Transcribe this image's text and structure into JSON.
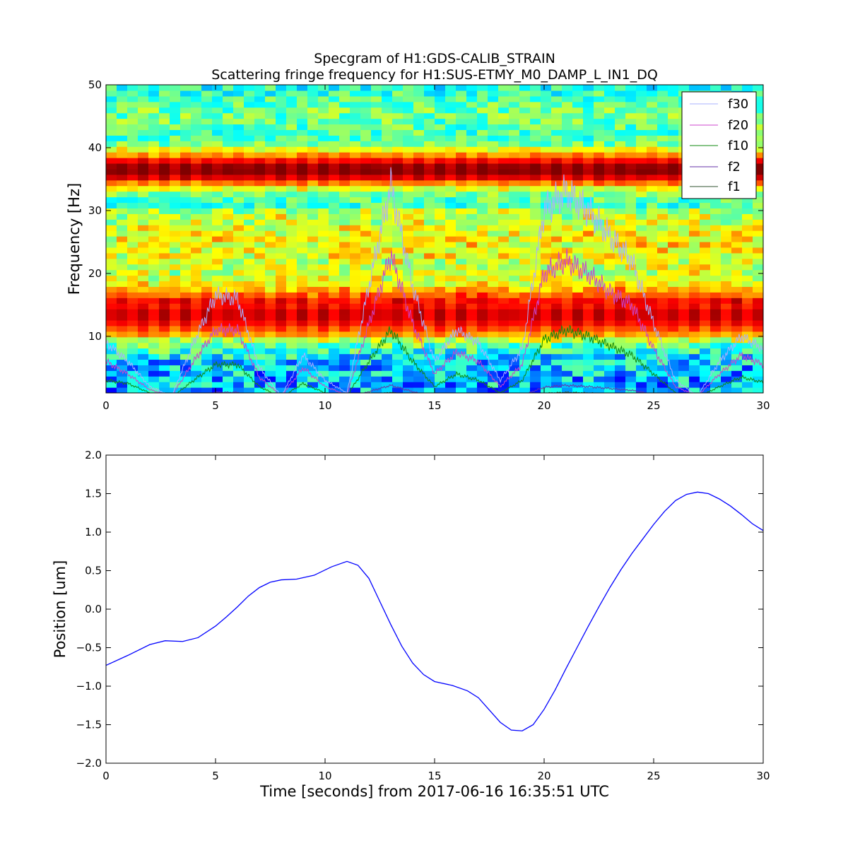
{
  "chart_data": [
    {
      "type": "heatmap",
      "title": "Specgram of H1:GDS-CALIB_STRAIN",
      "subtitle": "Scattering fringe frequency for H1:SUS-ETMY_M0_DAMP_L_IN1_DQ",
      "xlabel": "",
      "ylabel": "Frequency [Hz]",
      "xlim": [
        0,
        30
      ],
      "ylim": [
        1,
        50
      ],
      "xticks": [
        "0",
        "5",
        "10",
        "15",
        "20",
        "25",
        "30"
      ],
      "yticks": [
        "10",
        "20",
        "30",
        "40",
        "50"
      ],
      "colormap": "jet",
      "bands": [
        {
          "center_hz": 36.5,
          "width_hz": 4.5,
          "level": 1.0
        },
        {
          "center_hz": 13.5,
          "width_hz": 6.5,
          "level": 0.92
        }
      ],
      "legend": {
        "placement": "top-right",
        "entries": [
          "f30",
          "f20",
          "f10",
          "f2",
          "f1"
        ]
      },
      "series": [
        {
          "name": "f30",
          "color": "#aab0ff",
          "x": [
            0,
            1,
            2,
            3,
            4,
            5,
            6,
            7,
            8,
            9,
            10,
            11,
            12,
            13,
            14,
            15,
            16,
            17,
            18,
            19,
            20,
            21,
            22,
            23,
            24,
            25,
            26,
            27,
            28,
            29,
            30
          ],
          "y": [
            9,
            6,
            2,
            0.5,
            9,
            16.5,
            16,
            5,
            0.5,
            7,
            3,
            1,
            18,
            34,
            18,
            6,
            11,
            9,
            3,
            8,
            30,
            33,
            30,
            26,
            22,
            12,
            3,
            0.5,
            6,
            10,
            8
          ]
        },
        {
          "name": "f20",
          "color": "#cc44cc",
          "x": [
            0,
            1,
            2,
            3,
            4,
            5,
            6,
            7,
            8,
            9,
            10,
            11,
            12,
            13,
            14,
            15,
            16,
            17,
            18,
            19,
            20,
            21,
            22,
            23,
            24,
            25,
            26,
            27,
            28,
            29,
            30
          ],
          "y": [
            6,
            4,
            1.5,
            0.5,
            6,
            11,
            11,
            3.5,
            0.5,
            5,
            2,
            0.7,
            12,
            23,
            12,
            4,
            7.5,
            6,
            2,
            5.5,
            20,
            22,
            20,
            17,
            15,
            8,
            2,
            0.5,
            4,
            7,
            5.5
          ]
        },
        {
          "name": "f10",
          "color": "#118811",
          "x": [
            0,
            1,
            2,
            3,
            4,
            5,
            6,
            7,
            8,
            9,
            10,
            11,
            12,
            13,
            14,
            15,
            16,
            17,
            18,
            19,
            20,
            21,
            22,
            23,
            24,
            25,
            26,
            27,
            28,
            29,
            30
          ],
          "y": [
            3,
            2.5,
            1,
            0.3,
            3,
            5.5,
            5.5,
            2,
            0.3,
            2.5,
            1,
            0.5,
            6,
            11,
            6,
            2,
            4,
            3,
            1,
            3,
            9.5,
            11,
            10,
            8.5,
            7,
            4,
            1,
            0.3,
            2,
            3.5,
            2.7
          ]
        },
        {
          "name": "f2",
          "color": "#6633aa",
          "x": [
            0,
            1,
            2,
            3,
            4,
            5,
            6,
            7,
            8,
            9,
            10,
            11,
            12,
            13,
            14,
            15,
            16,
            17,
            18,
            19,
            20,
            21,
            22,
            23,
            24,
            25,
            26,
            27,
            28,
            29,
            30
          ],
          "y": [
            0.6,
            0.5,
            0.2,
            0.1,
            0.6,
            1.1,
            1.1,
            0.4,
            0.1,
            0.5,
            0.2,
            0.1,
            1.2,
            2.2,
            1.2,
            0.4,
            0.8,
            0.6,
            0.2,
            0.6,
            1.9,
            2.2,
            2,
            1.7,
            1.4,
            0.8,
            0.2,
            0.1,
            0.4,
            0.7,
            0.5
          ]
        },
        {
          "name": "f1",
          "color": "#335533",
          "x": [
            0,
            1,
            2,
            3,
            4,
            5,
            6,
            7,
            8,
            9,
            10,
            11,
            12,
            13,
            14,
            15,
            16,
            17,
            18,
            19,
            20,
            21,
            22,
            23,
            24,
            25,
            26,
            27,
            28,
            29,
            30
          ],
          "y": [
            0.3,
            0.25,
            0.1,
            0.05,
            0.3,
            0.55,
            0.55,
            0.2,
            0.05,
            0.25,
            0.1,
            0.05,
            0.6,
            1.1,
            0.6,
            0.2,
            0.4,
            0.3,
            0.1,
            0.3,
            0.95,
            1.1,
            1,
            0.85,
            0.7,
            0.4,
            0.1,
            0.05,
            0.2,
            0.35,
            0.25
          ]
        }
      ]
    },
    {
      "type": "line",
      "title": "",
      "xlabel": "Time [seconds] from 2017-06-16 16:35:51 UTC",
      "ylabel": "Position [um]",
      "xlim": [
        0,
        30
      ],
      "ylim": [
        -2,
        2
      ],
      "xticks": [
        "0",
        "5",
        "10",
        "15",
        "20",
        "25",
        "30"
      ],
      "yticks": [
        "2.0",
        "1.5",
        "1.0",
        "0.5",
        "0.0",
        "−0.5",
        "−1.0",
        "−1.5",
        "−2.0"
      ],
      "grid": false,
      "series": [
        {
          "color": "#0000ff",
          "x": [
            0,
            1,
            2,
            2.7,
            3.5,
            4.2,
            5,
            5.5,
            6,
            6.5,
            7,
            7.5,
            8,
            8.7,
            9.5,
            10.3,
            11,
            11.5,
            12,
            12.5,
            13,
            13.5,
            14,
            14.5,
            15,
            15.8,
            16.5,
            17,
            17.5,
            18,
            18.5,
            19,
            19.5,
            20,
            20.5,
            21,
            21.5,
            22,
            22.5,
            23,
            23.5,
            24,
            24.5,
            25,
            25.5,
            26,
            26.5,
            27,
            27.5,
            28,
            28.5,
            29,
            29.5,
            30
          ],
          "y": [
            -0.73,
            -0.6,
            -0.46,
            -0.41,
            -0.42,
            -0.37,
            -0.22,
            -0.1,
            0.03,
            0.17,
            0.28,
            0.35,
            0.38,
            0.39,
            0.44,
            0.55,
            0.62,
            0.57,
            0.4,
            0.1,
            -0.2,
            -0.48,
            -0.7,
            -0.85,
            -0.94,
            -0.99,
            -1.06,
            -1.15,
            -1.31,
            -1.47,
            -1.57,
            -1.58,
            -1.5,
            -1.3,
            -1.05,
            -0.77,
            -0.5,
            -0.23,
            0.03,
            0.28,
            0.51,
            0.72,
            0.91,
            1.1,
            1.27,
            1.41,
            1.49,
            1.52,
            1.5,
            1.43,
            1.34,
            1.23,
            1.11,
            1.02
          ]
        }
      ]
    }
  ]
}
